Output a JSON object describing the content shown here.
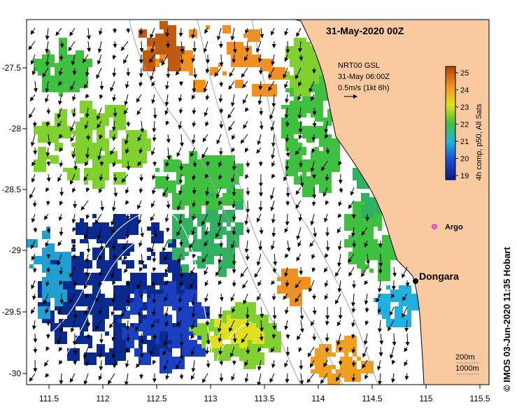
{
  "title": "31-May-2020 00Z",
  "current_info": {
    "line1": "NRT00 GSL",
    "line2": "31-May 06:00Z",
    "line3": "0.5m/s (1kt 6h)"
  },
  "colorbar": {
    "label": "4h comp, p50, All Sats",
    "ticks": [
      "25",
      "24",
      "23",
      "22",
      "21",
      "20",
      "19"
    ]
  },
  "axes": {
    "lon_ticks": [
      "111.5",
      "112",
      "112.5",
      "113",
      "113.5",
      "114",
      "114.5",
      "115",
      "115.5"
    ],
    "lat_ticks": [
      "-27.5",
      "-28",
      "-28.5",
      "-29",
      "-29.5",
      "-30"
    ]
  },
  "places": {
    "town": "Dongara",
    "argo": "Argo"
  },
  "depth_legend": {
    "a": "200m",
    "b": "1000m"
  },
  "credit": "© IMOS 03-Jun-2020 11:35 Hobart",
  "colors": {
    "land": "#f9c9a0",
    "argo": "#e040e0",
    "sst_warm": "#c85a10",
    "sst_mid": "#40c040",
    "sst_cold": "#0a2a90"
  }
}
